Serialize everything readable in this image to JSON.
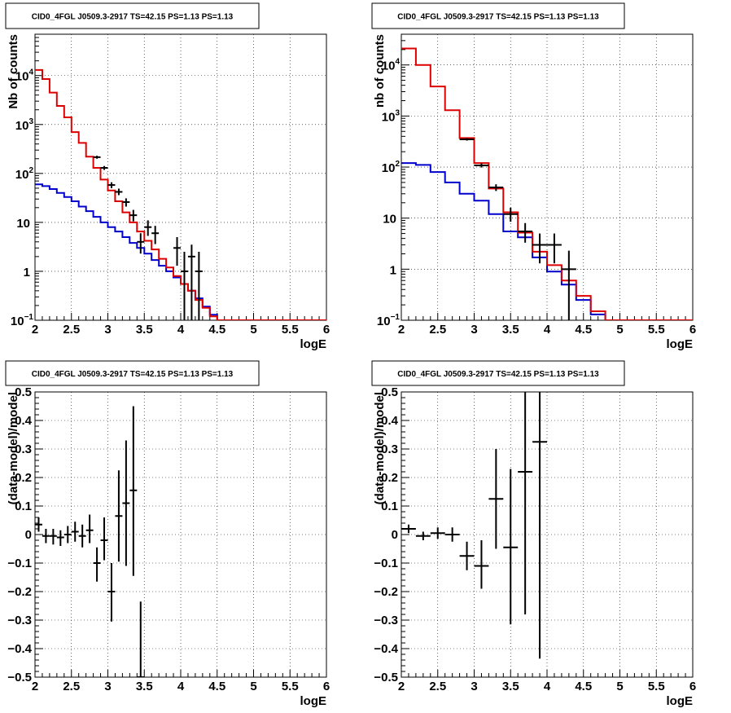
{
  "chart_data": [
    {
      "type": "line",
      "title": "CID0_4FGL J0509.3-2917 TS=42.15 PS=1.13 PS=1.13",
      "xlabel": "logE",
      "ylabel": "Nb of counts",
      "xlim": [
        2,
        6
      ],
      "ylim": [
        0.1,
        70000
      ],
      "yscale": "log",
      "grid": true,
      "x_ticks": [
        "2",
        "2.5",
        "3",
        "3.5",
        "4",
        "4.5",
        "5",
        "5.5",
        "6"
      ],
      "y_ticks": [
        "10^-1",
        "1",
        "10",
        "10^2",
        "10^3",
        "10^4"
      ],
      "bin_edges": [
        2.0,
        2.1,
        2.2,
        2.3,
        2.4,
        2.5,
        2.6,
        2.7,
        2.8,
        2.9,
        3.0,
        3.1,
        3.2,
        3.3,
        3.4,
        3.5,
        3.6,
        3.7,
        3.8,
        3.9,
        4.0,
        4.1,
        4.2,
        4.3,
        4.4,
        4.5,
        4.6,
        4.7,
        4.8,
        4.9,
        5.0,
        5.1,
        5.2,
        5.3,
        5.4,
        5.5,
        5.6,
        5.7,
        5.8,
        5.9,
        6.0
      ],
      "series": [
        {
          "name": "",
          "color": "#0000cc",
          "kind": "step",
          "values": [
            60,
            55,
            48,
            40,
            33,
            27,
            21,
            17,
            13,
            10,
            8,
            6.5,
            5,
            3.8,
            3,
            2.3,
            1.7,
            1.3,
            1.0,
            0.75,
            0.55,
            0.4,
            0.28,
            0.19,
            0.13,
            0.1,
            0.1,
            0.1,
            0.1,
            0.1,
            0.1,
            0.1,
            0.1,
            0.1,
            0.1,
            0.1,
            0.1,
            0.1,
            0.1,
            0.1
          ]
        },
        {
          "name": "",
          "color": "#dd0000",
          "kind": "step",
          "values": [
            13000,
            8500,
            4500,
            2400,
            1400,
            700,
            420,
            220,
            130,
            75,
            45,
            27,
            16,
            10,
            6.5,
            4.2,
            2.8,
            1.8,
            1.2,
            0.8,
            0.55,
            0.4,
            0.26,
            0.18,
            0.12,
            0.1,
            0.1,
            0.1,
            0.1,
            0.1,
            0.1,
            0.1,
            0.1,
            0.1,
            0.1,
            0.1,
            0.1,
            0.1,
            0.1,
            0.1
          ]
        },
        {
          "name": "",
          "color": "#000000",
          "kind": "errorbar",
          "points": [
            {
              "x": 2.85,
              "xerr": 0.05,
              "y": 215,
              "ylo": 200,
              "yhi": 230
            },
            {
              "x": 2.95,
              "xerr": 0.05,
              "y": 130,
              "ylo": 118,
              "yhi": 142
            },
            {
              "x": 3.05,
              "xerr": 0.05,
              "y": 58,
              "ylo": 50,
              "yhi": 66
            },
            {
              "x": 3.15,
              "xerr": 0.05,
              "y": 42,
              "ylo": 36,
              "yhi": 49
            },
            {
              "x": 3.25,
              "xerr": 0.05,
              "y": 26,
              "ylo": 21,
              "yhi": 31
            },
            {
              "x": 3.35,
              "xerr": 0.05,
              "y": 14,
              "ylo": 10.5,
              "yhi": 18
            },
            {
              "x": 3.45,
              "xerr": 0.05,
              "y": 4,
              "ylo": 2.3,
              "yhi": 6
            },
            {
              "x": 3.55,
              "xerr": 0.05,
              "y": 8,
              "ylo": 5.3,
              "yhi": 11
            },
            {
              "x": 3.65,
              "xerr": 0.05,
              "y": 6,
              "ylo": 3.6,
              "yhi": 8.5
            },
            {
              "x": 3.95,
              "xerr": 0.05,
              "y": 3,
              "ylo": 1.3,
              "yhi": 5
            },
            {
              "x": 4.05,
              "xerr": 0.05,
              "y": 1,
              "ylo": 0.1,
              "yhi": 2.5
            },
            {
              "x": 4.15,
              "xerr": 0.05,
              "y": 2,
              "ylo": 0.1,
              "yhi": 3.5
            },
            {
              "x": 4.25,
              "xerr": 0.05,
              "y": 1,
              "ylo": 0.1,
              "yhi": 2.5
            }
          ]
        }
      ]
    },
    {
      "type": "line",
      "title": "CID0_4FGL J0509.3-2917 TS=42.15 PS=1.13 PS=1.13",
      "xlabel": "logE",
      "ylabel": "nb of counts",
      "xlim": [
        2,
        6
      ],
      "ylim": [
        0.1,
        40000
      ],
      "yscale": "log",
      "grid": true,
      "x_ticks": [
        "2",
        "2.5",
        "3",
        "3.5",
        "4",
        "4.5",
        "5",
        "5.5",
        "6"
      ],
      "y_ticks": [
        "10^-1",
        "1",
        "10",
        "10^2",
        "10^3",
        "10^4"
      ],
      "bin_edges": [
        2.0,
        2.2,
        2.4,
        2.6,
        2.8,
        3.0,
        3.2,
        3.4,
        3.6,
        3.8,
        4.0,
        4.2,
        4.4,
        4.6,
        4.8,
        5.0,
        5.2,
        5.4,
        5.6,
        5.8,
        6.0
      ],
      "series": [
        {
          "name": "",
          "color": "#0000cc",
          "kind": "step",
          "values": [
            120,
            110,
            80,
            50,
            30,
            22,
            12,
            5.5,
            4.2,
            1.7,
            0.9,
            0.5,
            0.25,
            0.13,
            0.1,
            0.1,
            0.1,
            0.1,
            0.1,
            0.1
          ]
        },
        {
          "name": "",
          "color": "#dd0000",
          "kind": "step",
          "values": [
            21000,
            10000,
            3800,
            1300,
            370,
            120,
            38,
            13,
            5.2,
            2.2,
            1.2,
            0.6,
            0.3,
            0.15,
            0.1,
            0.1,
            0.1,
            0.1,
            0.1,
            0.1
          ]
        },
        {
          "name": "",
          "color": "#000000",
          "kind": "errorbar",
          "points": [
            {
              "x": 2.9,
              "xerr": 0.1,
              "y": 350,
              "ylo": 330,
              "yhi": 370
            },
            {
              "x": 3.1,
              "xerr": 0.1,
              "y": 108,
              "ylo": 98,
              "yhi": 118
            },
            {
              "x": 3.3,
              "xerr": 0.1,
              "y": 40,
              "ylo": 34,
              "yhi": 46
            },
            {
              "x": 3.5,
              "xerr": 0.1,
              "y": 12,
              "ylo": 8.5,
              "yhi": 16
            },
            {
              "x": 3.7,
              "xerr": 0.1,
              "y": 5.5,
              "ylo": 3.3,
              "yhi": 8
            },
            {
              "x": 3.9,
              "xerr": 0.1,
              "y": 3,
              "ylo": 1.3,
              "yhi": 5
            },
            {
              "x": 4.1,
              "xerr": 0.1,
              "y": 3,
              "ylo": 1.3,
              "yhi": 5
            },
            {
              "x": 4.3,
              "xerr": 0.1,
              "y": 1,
              "ylo": 0.1,
              "yhi": 2.3
            }
          ]
        }
      ]
    },
    {
      "type": "scatter",
      "title": "CID0_4FGL J0509.3-2917 TS=42.15 PS=1.13 PS=1.13",
      "xlabel": "logE",
      "ylabel": "(data-model)/model",
      "xlim": [
        2,
        6
      ],
      "ylim": [
        -0.5,
        0.5
      ],
      "grid": true,
      "x_ticks": [
        "2",
        "2.5",
        "3",
        "3.5",
        "4",
        "4.5",
        "5",
        "5.5",
        "6"
      ],
      "y_ticks": [
        "-0.5",
        "-0.4",
        "-0.3",
        "-0.2",
        "-0.1",
        "0",
        "0.1",
        "0.2",
        "0.3",
        "0.4",
        "0.5"
      ],
      "series": [
        {
          "name": "",
          "color": "#000000",
          "kind": "errorbar",
          "points": [
            {
              "x": 2.05,
              "xerr": 0.05,
              "y": 0.035,
              "ylo": 0.01,
              "yhi": 0.06
            },
            {
              "x": 2.15,
              "xerr": 0.05,
              "y": -0.005,
              "ylo": -0.03,
              "yhi": 0.02
            },
            {
              "x": 2.25,
              "xerr": 0.05,
              "y": -0.005,
              "ylo": -0.035,
              "yhi": 0.02
            },
            {
              "x": 2.35,
              "xerr": 0.05,
              "y": -0.01,
              "ylo": -0.04,
              "yhi": 0.015
            },
            {
              "x": 2.45,
              "xerr": 0.05,
              "y": 0.0,
              "ylo": -0.03,
              "yhi": 0.03
            },
            {
              "x": 2.55,
              "xerr": 0.05,
              "y": 0.01,
              "ylo": -0.025,
              "yhi": 0.045
            },
            {
              "x": 2.65,
              "xerr": 0.05,
              "y": -0.005,
              "ylo": -0.045,
              "yhi": 0.035
            },
            {
              "x": 2.75,
              "xerr": 0.05,
              "y": 0.015,
              "ylo": -0.03,
              "yhi": 0.07
            },
            {
              "x": 2.85,
              "xerr": 0.05,
              "y": -0.1,
              "ylo": -0.165,
              "yhi": -0.045
            },
            {
              "x": 2.95,
              "xerr": 0.05,
              "y": -0.02,
              "ylo": -0.09,
              "yhi": 0.06
            },
            {
              "x": 3.05,
              "xerr": 0.05,
              "y": -0.2,
              "ylo": -0.305,
              "yhi": -0.1
            },
            {
              "x": 3.15,
              "xerr": 0.05,
              "y": 0.065,
              "ylo": -0.095,
              "yhi": 0.225
            },
            {
              "x": 3.25,
              "xerr": 0.05,
              "y": 0.11,
              "ylo": -0.11,
              "yhi": 0.33
            },
            {
              "x": 3.35,
              "xerr": 0.05,
              "y": 0.155,
              "ylo": -0.145,
              "yhi": 0.45
            },
            {
              "x": 3.45,
              "xerr": 0.05,
              "y": -0.5,
              "ylo": -0.5,
              "yhi": -0.235
            }
          ]
        }
      ]
    },
    {
      "type": "scatter",
      "title": "CID0_4FGL J0509.3-2917 TS=42.15 PS=1.13 PS=1.13",
      "xlabel": "logE",
      "ylabel": "(data-model)/model",
      "xlim": [
        2,
        6
      ],
      "ylim": [
        -0.5,
        0.5
      ],
      "grid": true,
      "x_ticks": [
        "2",
        "2.5",
        "3",
        "3.5",
        "4",
        "4.5",
        "5",
        "5.5",
        "6"
      ],
      "y_ticks": [
        "-0.5",
        "-0.4",
        "-0.3",
        "-0.2",
        "-0.1",
        "0",
        "0.1",
        "0.2",
        "0.3",
        "0.4",
        "0.5"
      ],
      "series": [
        {
          "name": "",
          "color": "#000000",
          "kind": "errorbar",
          "points": [
            {
              "x": 2.1,
              "xerr": 0.1,
              "y": 0.02,
              "ylo": 0.005,
              "yhi": 0.035
            },
            {
              "x": 2.3,
              "xerr": 0.1,
              "y": -0.005,
              "ylo": -0.02,
              "yhi": 0.01
            },
            {
              "x": 2.5,
              "xerr": 0.1,
              "y": 0.005,
              "ylo": -0.015,
              "yhi": 0.025
            },
            {
              "x": 2.7,
              "xerr": 0.1,
              "y": 0.0,
              "ylo": -0.025,
              "yhi": 0.025
            },
            {
              "x": 2.9,
              "xerr": 0.1,
              "y": -0.075,
              "ylo": -0.125,
              "yhi": -0.025
            },
            {
              "x": 3.1,
              "xerr": 0.1,
              "y": -0.11,
              "ylo": -0.19,
              "yhi": -0.02
            },
            {
              "x": 3.3,
              "xerr": 0.1,
              "y": 0.125,
              "ylo": -0.05,
              "yhi": 0.3
            },
            {
              "x": 3.5,
              "xerr": 0.1,
              "y": -0.045,
              "ylo": -0.315,
              "yhi": 0.23
            },
            {
              "x": 3.7,
              "xerr": 0.1,
              "y": 0.22,
              "ylo": -0.28,
              "yhi": 0.5
            },
            {
              "x": 3.9,
              "xerr": 0.1,
              "y": 0.325,
              "ylo": -0.435,
              "yhi": 0.5
            }
          ]
        }
      ]
    }
  ]
}
